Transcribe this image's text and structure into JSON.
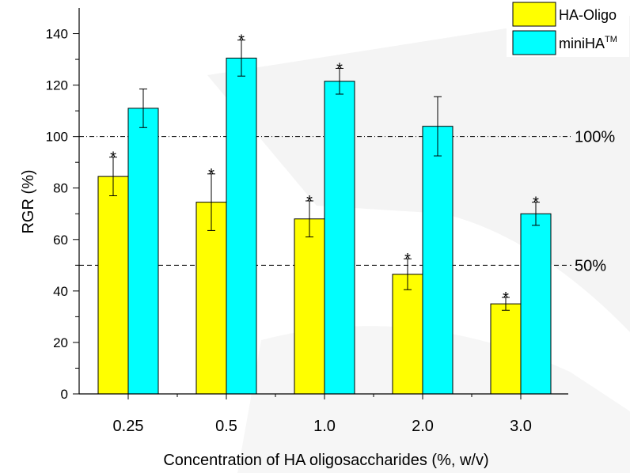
{
  "chart_data": {
    "type": "bar",
    "xlabel": "Concentration of HA oligosaccharides (%, w/v)",
    "ylabel": "RGR (%)",
    "categories": [
      "0.25",
      "0.5",
      "1.0",
      "2.0",
      "3.0"
    ],
    "ylim": [
      0,
      150
    ],
    "yticks": [
      0,
      20,
      40,
      60,
      80,
      100,
      120,
      140
    ],
    "grid": false,
    "legend": "top-right",
    "series": [
      {
        "name": "HA-Oligo",
        "color": "#ffff00",
        "values": [
          84.5,
          74.5,
          68,
          46.5,
          35
        ],
        "errors": [
          7.5,
          11,
          7,
          6,
          2.5
        ],
        "significant": [
          true,
          true,
          true,
          true,
          true
        ]
      },
      {
        "name": "miniHA",
        "name_sup": "TM",
        "color": "#00ffff",
        "values": [
          111,
          130.5,
          121.5,
          104,
          70
        ],
        "errors": [
          7.5,
          7,
          5,
          11.5,
          4.5
        ],
        "significant": [
          false,
          true,
          true,
          false,
          true
        ]
      }
    ],
    "reference_lines": [
      {
        "value": 100,
        "label": "100%",
        "style": "dash-dot"
      },
      {
        "value": 50,
        "label": "50%",
        "style": "dashed"
      }
    ],
    "significance_marker": "*"
  }
}
